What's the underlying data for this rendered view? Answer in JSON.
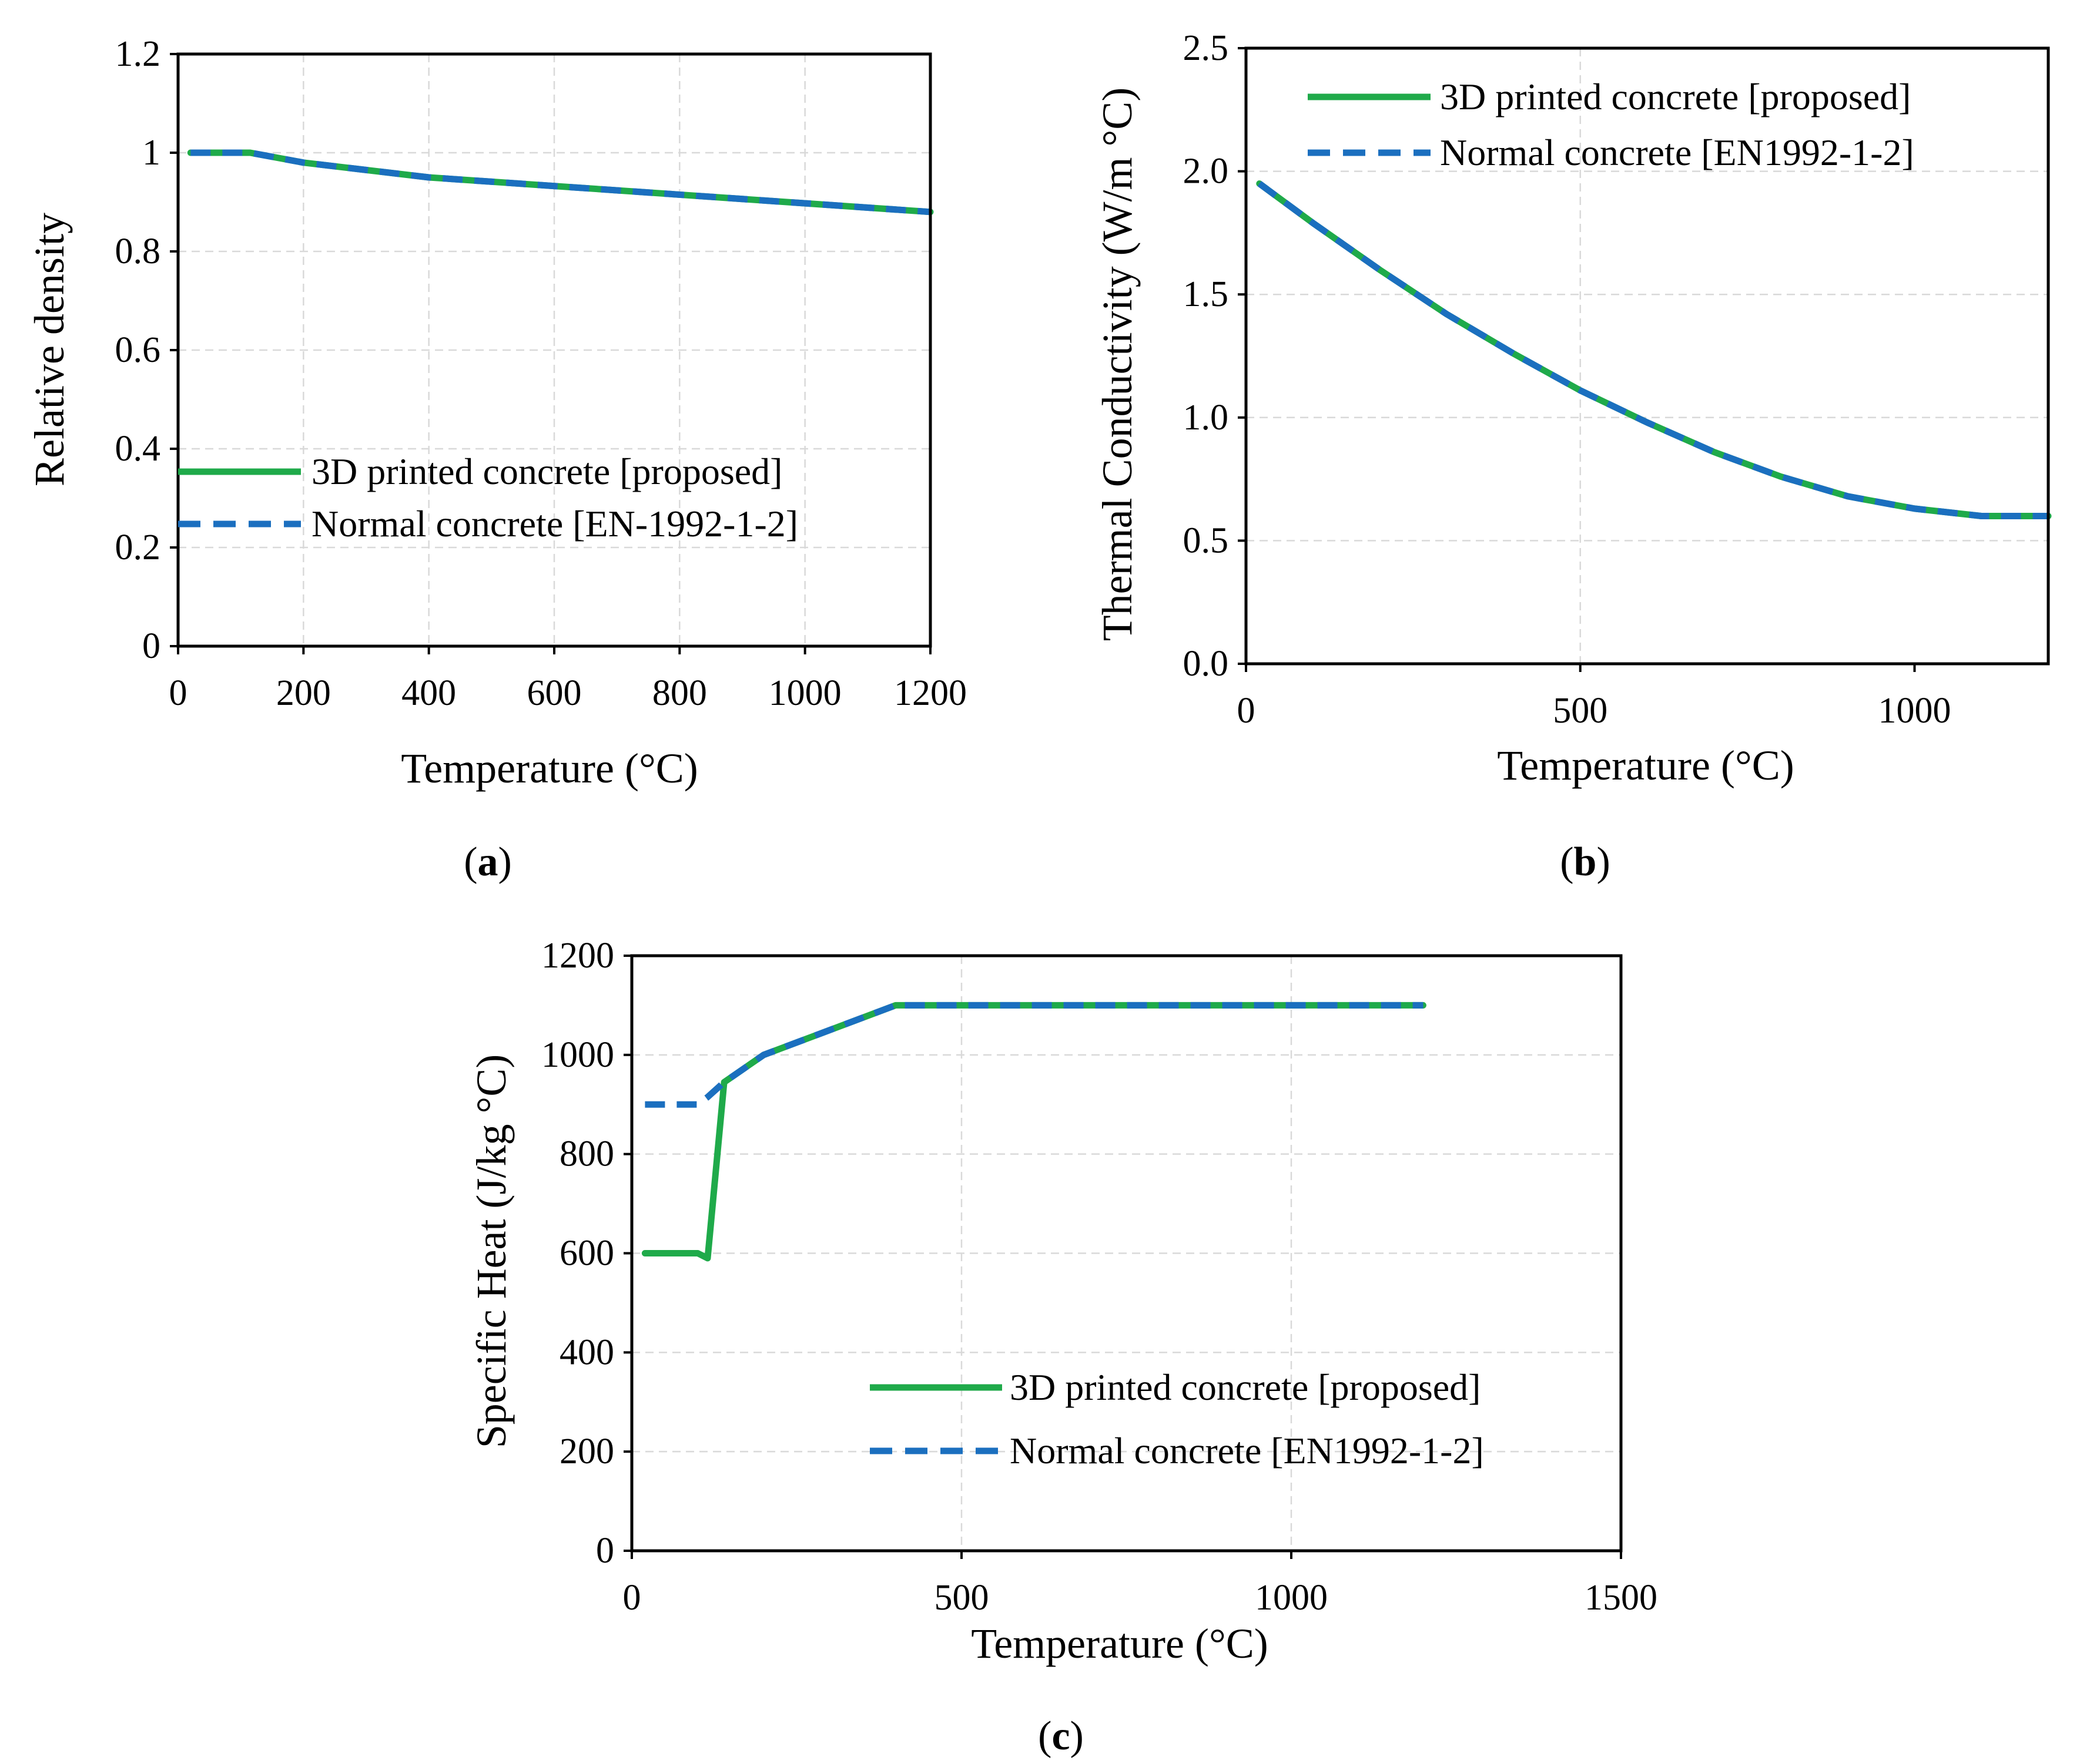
{
  "chart_data": [
    {
      "type": "line",
      "panel": "a",
      "caption": {
        "open": "(",
        "letter": "a",
        "close": ")"
      },
      "xlabel": "Temperature (°C)",
      "ylabel": "Relative density",
      "xlim": [
        0,
        1200
      ],
      "ylim": [
        0,
        1.2
      ],
      "xticks": [
        0,
        200,
        400,
        600,
        800,
        1000,
        1200
      ],
      "xtick_labels": [
        "0",
        "200",
        "400",
        "600",
        "800",
        "1000",
        "1200"
      ],
      "yticks": [
        0,
        0.2,
        0.4,
        0.6,
        0.8,
        1.0,
        1.2
      ],
      "ytick_labels": [
        "0",
        "0.2",
        "0.4",
        "0.6",
        "0.8",
        "1",
        "1.2"
      ],
      "grid": true,
      "legend_position": "lower-left",
      "series": [
        {
          "name": "3D printed concrete [proposed]",
          "color": "#1faa4a",
          "style": "solid",
          "x": [
            20,
            115,
            200,
            400,
            1200
          ],
          "y": [
            1.0,
            1.0,
            0.98,
            0.95,
            0.88
          ]
        },
        {
          "name": "Normal  concrete [EN-1992-1-2]",
          "color": "#1b6fbf",
          "style": "dashed",
          "x": [
            20,
            115,
            200,
            400,
            1200
          ],
          "y": [
            1.0,
            1.0,
            0.98,
            0.95,
            0.88
          ]
        }
      ]
    },
    {
      "type": "line",
      "panel": "b",
      "caption": {
        "open": "(",
        "letter": "b",
        "close": ")"
      },
      "xlabel": "Temperature (°C)",
      "ylabel": "Thermal Conductivity (W/m °C)",
      "xlim": [
        0,
        1200
      ],
      "ylim": [
        0,
        2.5
      ],
      "xticks": [
        0,
        500,
        1000
      ],
      "xtick_labels": [
        "0",
        "500",
        "1000"
      ],
      "yticks": [
        0,
        0.5,
        1.0,
        1.5,
        2.0,
        2.5
      ],
      "ytick_labels": [
        "0.0",
        "0.5",
        "1.0",
        "1.5",
        "2.0",
        "2.5"
      ],
      "grid": true,
      "legend_position": "top-right",
      "series": [
        {
          "name": "3D printed concrete [proposed]",
          "color": "#1faa4a",
          "style": "solid",
          "x": [
            20,
            100,
            200,
            300,
            400,
            500,
            600,
            700,
            800,
            900,
            1000,
            1100,
            1200
          ],
          "y": [
            1.95,
            1.79,
            1.6,
            1.42,
            1.26,
            1.11,
            0.98,
            0.86,
            0.76,
            0.68,
            0.63,
            0.6,
            0.6
          ]
        },
        {
          "name": "Normal concrete [EN1992-1-2]",
          "color": "#1b6fbf",
          "style": "dashed",
          "x": [
            20,
            100,
            200,
            300,
            400,
            500,
            600,
            700,
            800,
            900,
            1000,
            1100,
            1200
          ],
          "y": [
            1.95,
            1.79,
            1.6,
            1.42,
            1.26,
            1.11,
            0.98,
            0.86,
            0.76,
            0.68,
            0.63,
            0.6,
            0.6
          ]
        }
      ]
    },
    {
      "type": "line",
      "panel": "c",
      "caption": {
        "open": "(",
        "letter": "c",
        "close": ")"
      },
      "xlabel": "Temperature (°C)",
      "ylabel": "Specific Heat (J/kg °C)",
      "xlim": [
        0,
        1500
      ],
      "ylim": [
        0,
        1200
      ],
      "xticks": [
        0,
        500,
        1000,
        1500
      ],
      "xtick_labels": [
        "0",
        "500",
        "1000",
        "1500"
      ],
      "yticks": [
        0,
        200,
        400,
        600,
        800,
        1000,
        1200
      ],
      "ytick_labels": [
        "0",
        "200",
        "400",
        "600",
        "800",
        "1000",
        "1200"
      ],
      "grid": true,
      "legend_position": "lower-right",
      "series": [
        {
          "name": "3D printed concrete [proposed]",
          "color": "#1faa4a",
          "style": "solid",
          "x": [
            20,
            100,
            115,
            140,
            200,
            400,
            1200
          ],
          "y": [
            600,
            600,
            590,
            945,
            1000,
            1100,
            1100
          ]
        },
        {
          "name": "Normal concrete [EN1992-1-2]",
          "color": "#1b6fbf",
          "style": "dashed",
          "x": [
            20,
            100,
            115,
            140,
            200,
            400,
            1200
          ],
          "y": [
            900,
            900,
            915,
            945,
            1000,
            1100,
            1100
          ]
        }
      ]
    }
  ]
}
